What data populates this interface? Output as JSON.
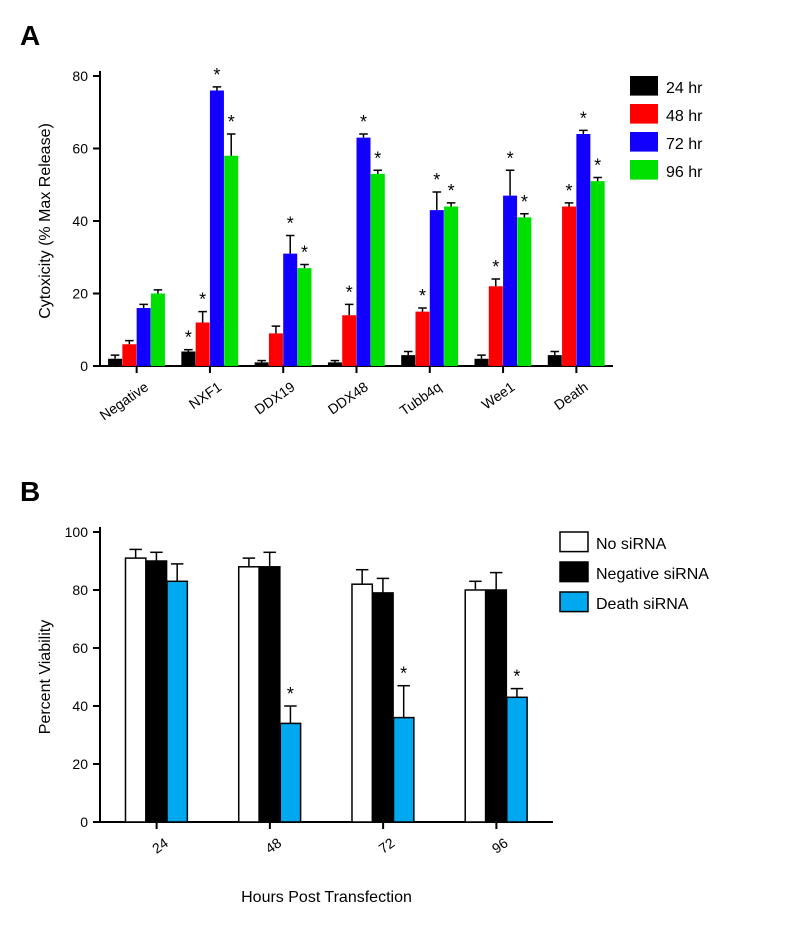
{
  "panelA": {
    "label": "A",
    "type": "bar",
    "ylabel": "Cytoxicity (% Max Release)",
    "ylim": [
      0,
      80
    ],
    "ytick_step": 20,
    "categories": [
      "Negative",
      "NXF1",
      "DDX19",
      "DDX48",
      "Tubb4q",
      "Wee1",
      "Death"
    ],
    "series": [
      {
        "name": "24 hr",
        "color": "#000000",
        "values": [
          2,
          4,
          1,
          1,
          3,
          2,
          3
        ],
        "errors": [
          1,
          0.5,
          0.5,
          0.5,
          1,
          1,
          1
        ],
        "sig": [
          false,
          true,
          false,
          false,
          false,
          false,
          false
        ]
      },
      {
        "name": "48 hr",
        "color": "#ff0000",
        "values": [
          6,
          12,
          9,
          14,
          15,
          22,
          44
        ],
        "errors": [
          1,
          3,
          2,
          3,
          1,
          2,
          1
        ],
        "sig": [
          false,
          true,
          false,
          true,
          true,
          true,
          true
        ]
      },
      {
        "name": "72 hr",
        "color": "#1200ff",
        "values": [
          16,
          76,
          31,
          63,
          43,
          47,
          64
        ],
        "errors": [
          1,
          1,
          5,
          1,
          5,
          7,
          1
        ],
        "sig": [
          false,
          true,
          true,
          true,
          true,
          true,
          true
        ]
      },
      {
        "name": "96 hr",
        "color": "#00e000",
        "values": [
          20,
          58,
          27,
          53,
          44,
          41,
          51
        ],
        "errors": [
          1,
          6,
          1,
          1,
          1,
          1,
          1
        ],
        "sig": [
          false,
          true,
          true,
          true,
          true,
          true,
          true
        ]
      }
    ],
    "legend_items": [
      "24 hr",
      "48 hr",
      "72 hr",
      "96 hr"
    ],
    "legend_colors": [
      "#000000",
      "#ff0000",
      "#1200ff",
      "#00e000"
    ]
  },
  "panelB": {
    "label": "B",
    "type": "bar",
    "ylabel": "Percent Viability",
    "xlabel": "Hours Post Transfection",
    "ylim": [
      0,
      100
    ],
    "ytick_step": 20,
    "categories": [
      "24",
      "48",
      "72",
      "96"
    ],
    "series": [
      {
        "name": "No siRNA",
        "fill": "#ffffff",
        "stroke": "#000000",
        "values": [
          91,
          88,
          82,
          80
        ],
        "errors": [
          3,
          3,
          5,
          3
        ],
        "sig": [
          false,
          false,
          false,
          false
        ]
      },
      {
        "name": "Negative siRNA",
        "fill": "#000000",
        "stroke": "#000000",
        "values": [
          90,
          88,
          79,
          80
        ],
        "errors": [
          3,
          5,
          5,
          6
        ],
        "sig": [
          false,
          false,
          false,
          false
        ]
      },
      {
        "name": "Death siRNA",
        "fill": "#00a8f0",
        "stroke": "#000000",
        "values": [
          83,
          34,
          36,
          43
        ],
        "errors": [
          6,
          6,
          11,
          3
        ],
        "sig": [
          false,
          true,
          true,
          true
        ]
      }
    ],
    "legend_items": [
      "No siRNA",
      "Negative siRNA",
      "Death siRNA"
    ],
    "legend_fills": [
      "#ffffff",
      "#000000",
      "#00a8f0"
    ]
  }
}
